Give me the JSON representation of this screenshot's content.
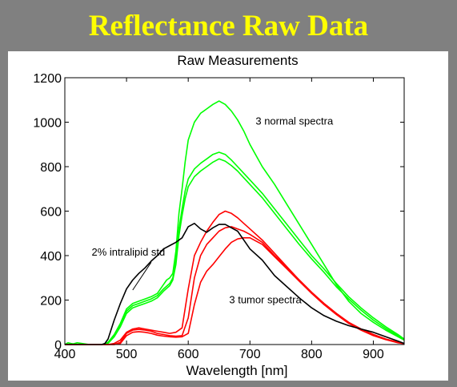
{
  "slide": {
    "title": "Reflectance Raw Data"
  },
  "chart_data": {
    "type": "line",
    "title": "Raw Measurements",
    "xlabel": "Wavelength [nm]",
    "ylabel": "",
    "xlim": [
      400,
      950
    ],
    "ylim": [
      0,
      1200
    ],
    "xticks": [
      400,
      500,
      600,
      700,
      800,
      900
    ],
    "yticks": [
      0,
      200,
      400,
      600,
      800,
      1000,
      1200
    ],
    "grid": false,
    "colors": {
      "normal": "#00ff00",
      "tumor": "#ff0000",
      "standard": "#000000"
    },
    "annotations": [
      {
        "text": "3 normal spectra",
        "x": 772,
        "y": 990
      },
      {
        "text": "2% intralipid std",
        "x": 503,
        "y": 400
      },
      {
        "text": "3 tumor spectra",
        "x": 725,
        "y": 185
      }
    ],
    "series": [
      {
        "group": "normal",
        "x": [
          400,
          405,
          410,
          420,
          430,
          440,
          450,
          460,
          465,
          470,
          480,
          490,
          500,
          510,
          520,
          530,
          540,
          550,
          560,
          565,
          570,
          575,
          580,
          585,
          590,
          595,
          600,
          610,
          620,
          630,
          640,
          650,
          660,
          670,
          680,
          690,
          700,
          720,
          740,
          760,
          780,
          800,
          820,
          840,
          860,
          880,
          900,
          920,
          940,
          950
        ],
        "y": [
          0,
          8,
          5,
          0,
          0,
          0,
          0,
          0,
          3,
          10,
          45,
          95,
          160,
          185,
          195,
          205,
          215,
          230,
          270,
          290,
          300,
          320,
          420,
          590,
          700,
          820,
          920,
          1000,
          1040,
          1060,
          1080,
          1095,
          1080,
          1050,
          1010,
          960,
          900,
          800,
          720,
          630,
          540,
          450,
          360,
          270,
          195,
          140,
          100,
          65,
          35,
          20
        ]
      },
      {
        "group": "normal",
        "x": [
          400,
          410,
          420,
          440,
          460,
          470,
          480,
          490,
          500,
          510,
          520,
          530,
          540,
          550,
          560,
          570,
          575,
          580,
          585,
          590,
          595,
          600,
          610,
          620,
          630,
          640,
          650,
          660,
          670,
          680,
          690,
          700,
          720,
          740,
          760,
          780,
          800,
          820,
          840,
          860,
          880,
          900,
          920,
          940,
          950
        ],
        "y": [
          0,
          0,
          8,
          0,
          0,
          8,
          40,
          90,
          150,
          175,
          185,
          195,
          205,
          220,
          250,
          275,
          300,
          380,
          520,
          610,
          690,
          745,
          790,
          815,
          835,
          855,
          865,
          855,
          830,
          800,
          770,
          740,
          680,
          610,
          540,
          470,
          400,
          340,
          275,
          215,
          165,
          120,
          80,
          45,
          25
        ]
      },
      {
        "group": "normal",
        "x": [
          400,
          420,
          440,
          460,
          470,
          480,
          490,
          500,
          510,
          520,
          530,
          540,
          550,
          560,
          570,
          575,
          580,
          585,
          590,
          595,
          600,
          610,
          620,
          630,
          640,
          650,
          660,
          670,
          680,
          690,
          700,
          720,
          740,
          760,
          780,
          800,
          820,
          840,
          860,
          880,
          900,
          920,
          940,
          950
        ],
        "y": [
          0,
          0,
          0,
          0,
          5,
          35,
          80,
          140,
          165,
          175,
          185,
          195,
          210,
          240,
          265,
          290,
          360,
          490,
          580,
          655,
          710,
          755,
          780,
          800,
          820,
          835,
          825,
          805,
          780,
          750,
          720,
          660,
          590,
          520,
          450,
          385,
          325,
          260,
          205,
          155,
          110,
          72,
          40,
          22
        ]
      },
      {
        "group": "tumor",
        "x": [
          400,
          450,
          470,
          480,
          490,
          500,
          510,
          520,
          530,
          540,
          550,
          560,
          570,
          580,
          590,
          600,
          610,
          620,
          630,
          640,
          650,
          660,
          670,
          680,
          690,
          700,
          720,
          740,
          760,
          780,
          800,
          820,
          840,
          860,
          880,
          900,
          920,
          940,
          950
        ],
        "y": [
          0,
          0,
          0,
          5,
          20,
          55,
          70,
          75,
          70,
          65,
          60,
          55,
          50,
          55,
          75,
          250,
          400,
          460,
          510,
          550,
          585,
          600,
          590,
          570,
          545,
          520,
          470,
          410,
          350,
          290,
          235,
          185,
          140,
          100,
          70,
          45,
          25,
          10,
          5
        ]
      },
      {
        "group": "tumor",
        "x": [
          400,
          480,
          490,
          500,
          510,
          520,
          530,
          540,
          550,
          560,
          570,
          580,
          590,
          600,
          610,
          620,
          630,
          640,
          650,
          660,
          670,
          680,
          690,
          700,
          720,
          740,
          760,
          780,
          800,
          820,
          840,
          860,
          880,
          900,
          920,
          940,
          950
        ],
        "y": [
          0,
          0,
          10,
          50,
          65,
          68,
          65,
          60,
          50,
          45,
          40,
          38,
          40,
          120,
          300,
          400,
          450,
          480,
          510,
          525,
          530,
          520,
          510,
          495,
          460,
          400,
          345,
          290,
          235,
          185,
          140,
          100,
          70,
          45,
          25,
          10,
          5
        ]
      },
      {
        "group": "tumor",
        "x": [
          400,
          480,
          490,
          500,
          510,
          520,
          530,
          540,
          550,
          560,
          570,
          580,
          590,
          600,
          610,
          620,
          630,
          640,
          650,
          660,
          670,
          680,
          690,
          700,
          720,
          740,
          760,
          780,
          800,
          820,
          840,
          860,
          880,
          900,
          920,
          940,
          950
        ],
        "y": [
          0,
          0,
          5,
          40,
          55,
          58,
          55,
          50,
          42,
          38,
          35,
          33,
          35,
          50,
          180,
          280,
          330,
          360,
          395,
          430,
          460,
          475,
          480,
          480,
          450,
          395,
          340,
          285,
          230,
          180,
          135,
          95,
          65,
          40,
          22,
          8,
          4
        ]
      },
      {
        "group": "standard",
        "x": [
          400,
          430,
          450,
          460,
          465,
          470,
          480,
          490,
          500,
          510,
          520,
          530,
          540,
          550,
          560,
          570,
          580,
          590,
          600,
          610,
          620,
          630,
          640,
          650,
          660,
          670,
          680,
          690,
          700,
          720,
          740,
          760,
          780,
          800,
          820,
          840,
          860,
          880,
          900,
          920,
          940,
          950
        ],
        "y": [
          0,
          0,
          0,
          0,
          5,
          25,
          110,
          185,
          250,
          290,
          320,
          345,
          375,
          400,
          430,
          445,
          460,
          480,
          530,
          545,
          520,
          505,
          525,
          540,
          540,
          525,
          510,
          470,
          430,
          380,
          310,
          260,
          210,
          165,
          130,
          105,
          85,
          70,
          55,
          35,
          15,
          5
        ]
      }
    ]
  }
}
